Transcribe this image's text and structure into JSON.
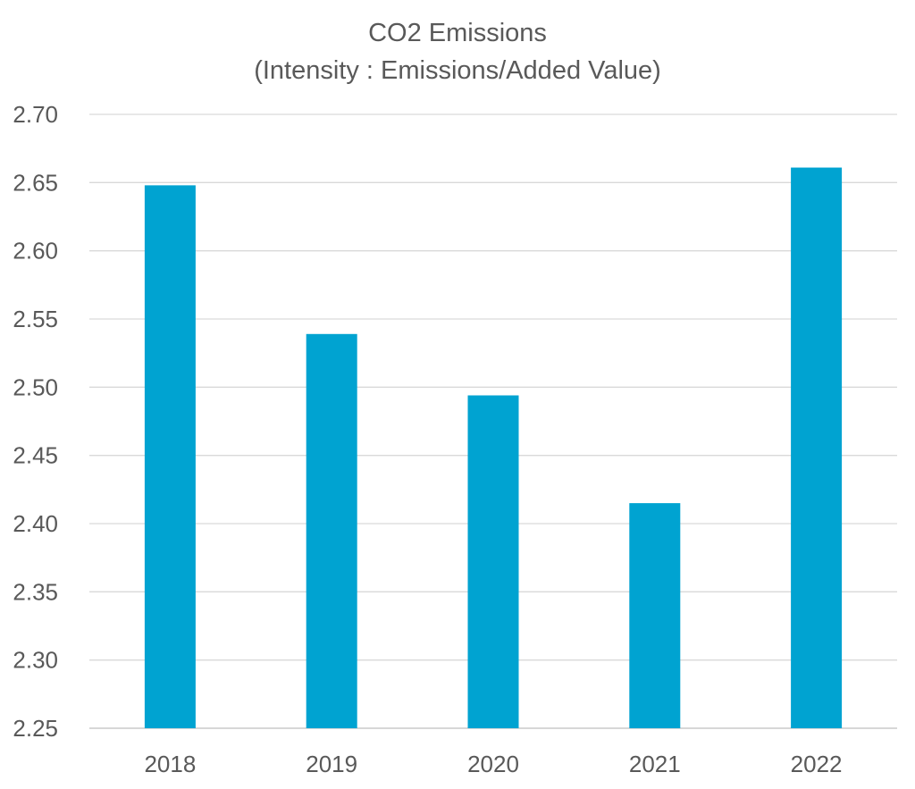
{
  "chart_data": {
    "type": "bar",
    "title": "CO2 Emissions",
    "subtitle": "(Intensity : Emissions/Added Value)",
    "categories": [
      "2018",
      "2019",
      "2020",
      "2021",
      "2022"
    ],
    "values": [
      2.648,
      2.539,
      2.494,
      2.415,
      2.661
    ],
    "xlabel": "",
    "ylabel": "",
    "ylim": [
      2.25,
      2.7
    ],
    "yticks": [
      "2.25",
      "2.30",
      "2.35",
      "2.40",
      "2.45",
      "2.50",
      "2.55",
      "2.60",
      "2.65",
      "2.70"
    ],
    "grid": true,
    "legend": "none",
    "bar_color": "#00A3D1"
  }
}
